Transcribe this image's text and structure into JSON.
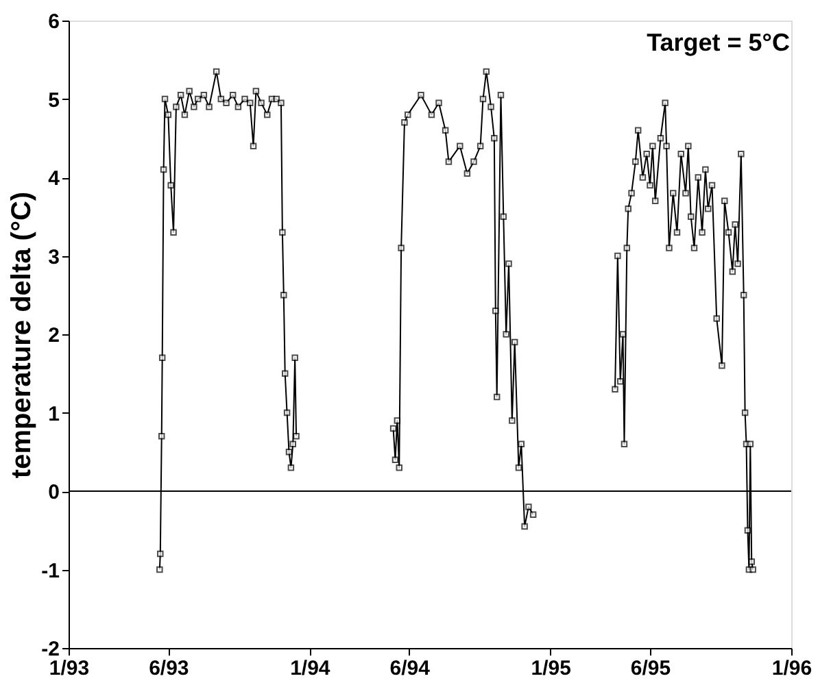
{
  "chart_data": {
    "type": "line",
    "xlabel": null,
    "ylabel": "temperature delta (°C)",
    "annotations": [
      "Target = 5°C"
    ],
    "x": [
      "1993-05-19",
      "1993-05-20",
      "1993-05-22",
      "1993-05-23",
      "1993-05-25",
      "1993-05-27",
      "1993-06-01",
      "1993-06-05",
      "1993-06-09",
      "1993-06-13",
      "1993-06-20",
      "1993-06-26",
      "1993-07-03",
      "1993-07-10",
      "1993-07-16",
      "1993-07-25",
      "1993-08-02",
      "1993-08-13",
      "1993-08-20",
      "1993-08-28",
      "1993-09-07",
      "1993-09-15",
      "1993-09-25",
      "1993-10-03",
      "1993-10-08",
      "1993-10-12",
      "1993-10-20",
      "1993-10-29",
      "1993-11-05",
      "1993-11-12",
      "1993-11-19",
      "1993-11-21",
      "1993-11-23",
      "1993-11-25",
      "1993-11-28",
      "1993-12-01",
      "1993-12-04",
      "1993-12-07",
      "1993-12-10",
      "1993-12-12",
      "1994-03-01",
      "1994-05-08",
      "1994-05-11",
      "1994-05-14",
      "1994-05-17",
      "1994-05-20",
      "1994-05-25",
      "1994-05-30",
      "1994-06-19",
      "1994-07-05",
      "1994-07-16",
      "1994-07-26",
      "1994-07-31",
      "1994-08-17",
      "1994-08-28",
      "1994-09-07",
      "1994-09-17",
      "1994-09-21",
      "1994-09-26",
      "1994-10-03",
      "1994-10-08",
      "1994-10-10",
      "1994-10-12",
      "1994-10-18",
      "1994-10-22",
      "1994-10-26",
      "1994-10-30",
      "1994-11-04",
      "1994-11-08",
      "1994-11-14",
      "1994-11-18",
      "1994-11-23",
      "1994-11-29",
      "1994-12-06",
      "1995-02-01",
      "1995-04-09",
      "1995-04-13",
      "1995-04-17",
      "1995-04-21",
      "1995-04-23",
      "1995-04-27",
      "1995-04-29",
      "1995-05-04",
      "1995-05-10",
      "1995-05-14",
      "1995-05-21",
      "1995-05-27",
      "1995-06-01",
      "1995-06-05",
      "1995-06-09",
      "1995-06-17",
      "1995-06-24",
      "1995-06-26",
      "1995-06-30",
      "1995-07-06",
      "1995-07-12",
      "1995-07-18",
      "1995-07-25",
      "1995-07-29",
      "1995-08-02",
      "1995-08-07",
      "1995-08-13",
      "1995-08-19",
      "1995-08-24",
      "1995-08-28",
      "1995-09-03",
      "1995-09-10",
      "1995-09-18",
      "1995-09-22",
      "1995-09-28",
      "1995-10-04",
      "1995-10-08",
      "1995-10-12",
      "1995-10-17",
      "1995-10-21",
      "1995-10-23",
      "1995-10-25",
      "1995-10-27",
      "1995-10-29",
      "1995-10-31",
      "1995-11-02",
      "1995-11-04"
    ],
    "series": [
      {
        "color": "#000000",
        "values": [
          -1.0,
          -0.8,
          0.7,
          1.7,
          4.1,
          5.0,
          4.8,
          3.9,
          3.3,
          4.9,
          5.05,
          4.8,
          5.1,
          4.9,
          5.0,
          5.05,
          4.9,
          5.35,
          5.0,
          4.95,
          5.05,
          4.9,
          5.0,
          4.95,
          4.4,
          5.1,
          4.95,
          4.8,
          5.0,
          5.0,
          4.95,
          3.3,
          2.5,
          1.5,
          1.0,
          0.5,
          0.3,
          0.6,
          1.7,
          0.7,
          null,
          0.8,
          0.4,
          0.9,
          0.3,
          3.1,
          4.7,
          4.8,
          5.05,
          4.8,
          4.95,
          4.6,
          4.2,
          4.4,
          4.05,
          4.2,
          4.4,
          5.0,
          5.35,
          4.9,
          4.5,
          2.3,
          1.2,
          5.05,
          3.5,
          2.0,
          2.9,
          0.9,
          1.9,
          0.3,
          0.6,
          -0.45,
          -0.2,
          -0.3,
          null,
          1.3,
          3.0,
          1.4,
          2.0,
          0.6,
          3.1,
          3.6,
          3.8,
          4.2,
          4.6,
          4.0,
          4.3,
          3.9,
          4.4,
          3.7,
          4.5,
          4.95,
          4.4,
          3.1,
          3.8,
          3.3,
          4.3,
          3.8,
          4.4,
          3.5,
          3.1,
          4.0,
          3.3,
          4.1,
          3.6,
          3.9,
          2.2,
          1.6,
          3.7,
          3.3,
          2.8,
          3.4,
          2.9,
          4.3,
          2.5,
          1.0,
          0.6,
          -0.5,
          -1.0,
          0.6,
          -0.9,
          -1.0
        ]
      }
    ],
    "xlim": [
      "1993-01-01",
      "1996-01-01"
    ],
    "xticks": [
      {
        "value": "1993-01-01",
        "label": "1/93"
      },
      {
        "value": "1993-06-01",
        "label": "6/93"
      },
      {
        "value": "1994-01-01",
        "label": "1/94"
      },
      {
        "value": "1994-06-01",
        "label": "6/94"
      },
      {
        "value": "1995-01-01",
        "label": "1/95"
      },
      {
        "value": "1995-06-01",
        "label": "6/95"
      },
      {
        "value": "1996-01-01",
        "label": "1/96"
      }
    ],
    "ylim": [
      -2,
      6
    ],
    "yticks": [
      -2,
      -1,
      0,
      1,
      2,
      3,
      4,
      5,
      6
    ],
    "ref_lines": [
      {
        "axis": "y",
        "value": 0,
        "label": null,
        "color": "#000000"
      }
    ],
    "grid": false,
    "marker": "square",
    "line_style": "solid"
  }
}
